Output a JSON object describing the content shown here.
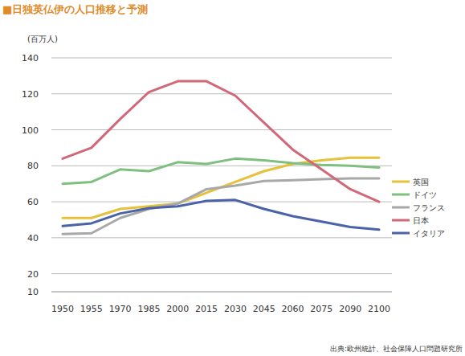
{
  "chart_data": {
    "type": "line",
    "title": "■日独英仏伊の人口推移と予測",
    "y_label": "(百万人)",
    "source": "出典:欧州統計、社会保障人口問題研究所",
    "categories": [
      "1950",
      "1955",
      "1970",
      "1985",
      "2000",
      "2015",
      "2030",
      "2045",
      "2060",
      "2075",
      "2090",
      "2100"
    ],
    "series": [
      {
        "name": "英国",
        "color": "#e8c13a",
        "values": [
          51,
          51,
          56,
          57.5,
          59,
          65,
          71,
          77,
          81,
          83,
          84.5,
          84.5
        ]
      },
      {
        "name": "ドイツ",
        "color": "#7fbf7f",
        "values": [
          70,
          71,
          78,
          77,
          82,
          81,
          84,
          83,
          81.5,
          80.5,
          80,
          79
        ]
      },
      {
        "name": "フランス",
        "color": "#a8a8a8",
        "values": [
          42,
          42.5,
          51,
          56,
          59,
          67,
          69,
          71.5,
          72,
          72.5,
          73,
          73
        ]
      },
      {
        "name": "日本",
        "color": "#d06878",
        "values": [
          84,
          90,
          106,
          121,
          127,
          127,
          119,
          104,
          89,
          78,
          67,
          60
        ]
      },
      {
        "name": "イタリア",
        "color": "#4a62a8",
        "values": [
          46.5,
          48,
          53.5,
          56.5,
          57.5,
          60.5,
          61,
          56,
          52,
          49,
          46,
          44.5
        ]
      }
    ],
    "ylim": [
      10,
      140
    ],
    "yticks": [
      10,
      20,
      40,
      60,
      80,
      100,
      120,
      140
    ],
    "grid": true,
    "legend": "right"
  }
}
